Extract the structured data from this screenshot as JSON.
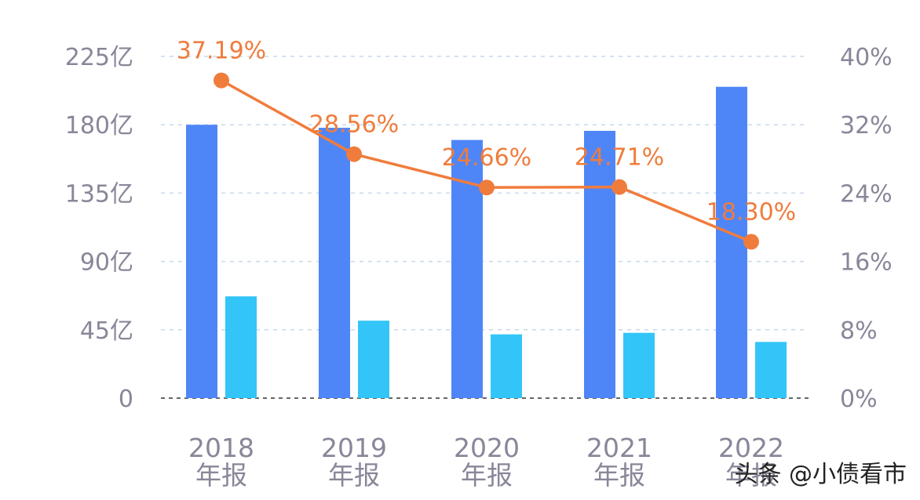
{
  "chart_data": {
    "type": "bar+line",
    "title": "",
    "categories": [
      [
        "2018",
        "年报"
      ],
      [
        "2019",
        "年报"
      ],
      [
        "2020",
        "年报"
      ],
      [
        "2021",
        "年报"
      ],
      [
        "2022",
        "年报"
      ]
    ],
    "left_axis": {
      "ylim": [
        0,
        225
      ],
      "ticks": [
        "0",
        "45亿",
        "90亿",
        "135亿",
        "180亿",
        "225亿"
      ],
      "tick_values": [
        0,
        45,
        90,
        135,
        180,
        225
      ]
    },
    "right_axis": {
      "ylim": [
        0,
        40
      ],
      "ticks": [
        "0%",
        "8%",
        "16%",
        "24%",
        "32%",
        "40%"
      ],
      "tick_values": [
        0,
        8,
        16,
        24,
        32,
        40
      ]
    },
    "series": [
      {
        "type": "bar",
        "axis": "left",
        "color": "#4f86f7",
        "values": [
          180,
          178,
          170,
          176,
          205
        ]
      },
      {
        "type": "bar",
        "axis": "left",
        "color": "#33c5f7",
        "values": [
          67,
          51,
          42,
          43,
          37
        ]
      },
      {
        "type": "line",
        "axis": "right",
        "color": "#f07c3c",
        "values": [
          37.19,
          28.56,
          24.66,
          24.71,
          18.3
        ],
        "labels": [
          "37.19%",
          "28.56%",
          "24.66%",
          "24.71%",
          "18.30%"
        ]
      }
    ],
    "grid": true
  },
  "watermark": {
    "text": "头条 @小债看市"
  },
  "colors": {
    "axis_text": "#8a8699",
    "grid": "#c8d9ea",
    "baseline": "#666666"
  }
}
